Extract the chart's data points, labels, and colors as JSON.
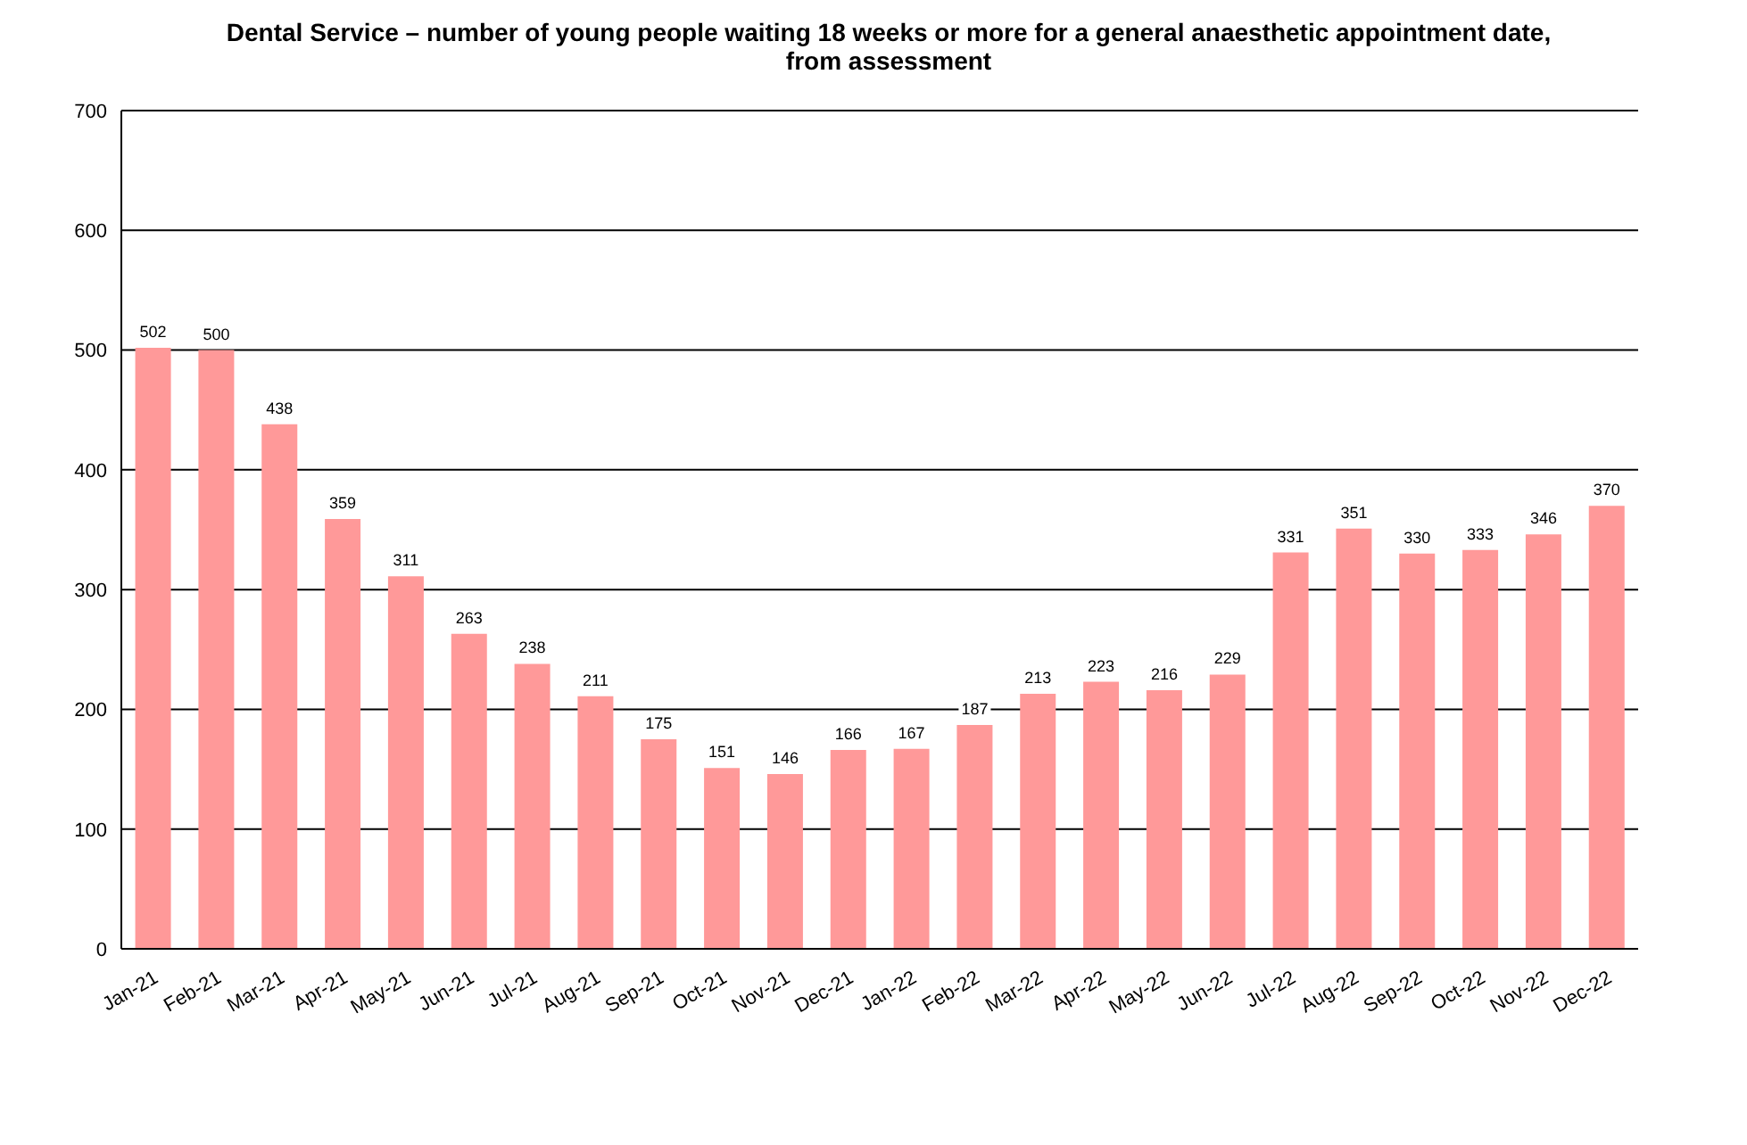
{
  "chart_data": {
    "type": "bar",
    "title": "Dental Service – number of young people waiting 18 weeks or more for a general anaesthetic appointment date, from assessment",
    "categories": [
      "Jan-21",
      "Feb-21",
      "Mar-21",
      "Apr-21",
      "May-21",
      "Jun-21",
      "Jul-21",
      "Aug-21",
      "Sep-21",
      "Oct-21",
      "Nov-21",
      "Dec-21",
      "Jan-22",
      "Feb-22",
      "Mar-22",
      "Apr-22",
      "May-22",
      "Jun-22",
      "Jul-22",
      "Aug-22",
      "Sep-22",
      "Oct-22",
      "Nov-22",
      "Dec-22"
    ],
    "values": [
      502,
      500,
      438,
      359,
      311,
      263,
      238,
      211,
      175,
      151,
      146,
      166,
      167,
      187,
      213,
      223,
      216,
      229,
      331,
      351,
      330,
      333,
      346,
      370
    ],
    "color": "#ff9999",
    "ylim": [
      0,
      700
    ],
    "yticks": [
      0,
      100,
      200,
      300,
      400,
      500,
      600,
      700
    ],
    "grid": "y",
    "data_labels": true
  }
}
